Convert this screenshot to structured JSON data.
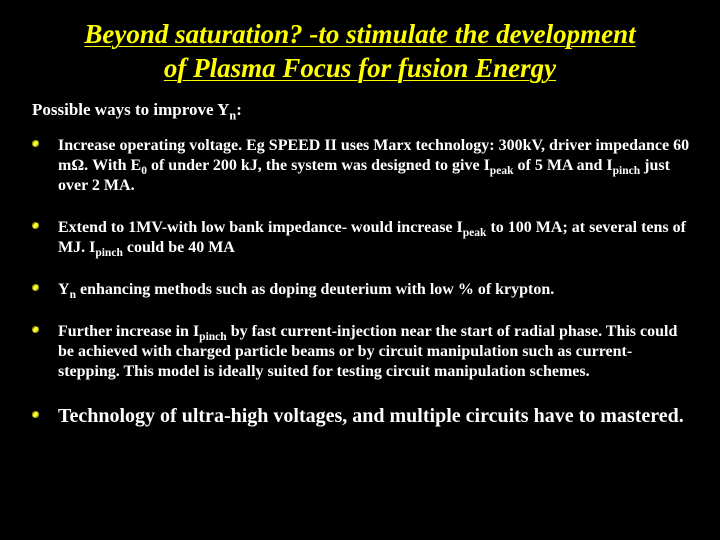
{
  "slide": {
    "background_color": "#000000",
    "title_color": "#ffff00",
    "body_color": "#ffffff",
    "bullet_color": "#ffff33",
    "title_font_family": "Times New Roman",
    "title_font_style": "italic bold underline",
    "title_fontsize_pt": 27,
    "subtitle_fontsize_pt": 17,
    "bullet_fontsize_pt": 16,
    "last_bullet_fontsize_pt": 20,
    "title_line1": "Beyond saturation? -to stimulate the development",
    "title_line2": "of Plasma Focus for fusion Energy",
    "subtitle_prefix": "Possible ways to improve Y",
    "subtitle_sub": "n",
    "subtitle_suffix": ":",
    "bullets": [
      {
        "html": "Increase operating voltage. Eg SPEED II uses  Marx technology: 300kV, driver impedance 60 m<span class='omega'>Ω</span>. With E<sub>0</sub> of under 200 kJ, the system was designed to give I<sub>peak</sub> of 5 MA and I<sub>pinch</sub> just over 2 MA."
      },
      {
        "html": "Extend to 1MV-with low bank impedance- would increase I<sub>peak</sub> to 100 MA; at several tens of MJ. I<sub>pinch</sub> could be 40 MA"
      },
      {
        "html": "Y<sub>n</sub> enhancing methods such as doping deuterium with low % of krypton."
      },
      {
        "html": "Further increase in I<sub>pinch</sub> by fast current-injection near the start of radial phase. This could be achieved with charged particle beams or by circuit manipulation such as current-stepping. This model is ideally suited for testing circuit manipulation schemes."
      },
      {
        "big": true,
        "html": "Technology of ultra-high voltages, and multiple circuits have to mastered."
      }
    ]
  }
}
